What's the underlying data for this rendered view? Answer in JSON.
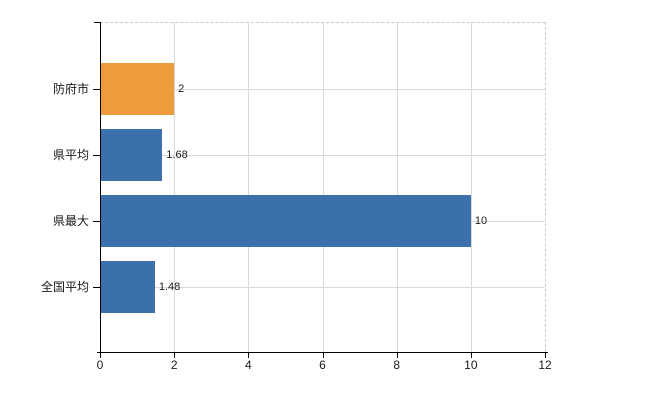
{
  "chart_data": {
    "type": "bar",
    "orientation": "horizontal",
    "title": "",
    "xlabel": "",
    "ylabel": "",
    "categories": [
      "防府市",
      "県平均",
      "県最大",
      "全国平均"
    ],
    "values": [
      2,
      1.68,
      10,
      1.48
    ],
    "value_labels": [
      "2",
      "1.68",
      "10",
      "1.48"
    ],
    "bar_colors": [
      "#ee9b3d",
      "#3c70ac",
      "#3c70ac",
      "#3c70ac"
    ],
    "xlim": [
      0,
      12
    ],
    "x_ticks": [
      0,
      2,
      4,
      6,
      8,
      10,
      12
    ],
    "x_tick_labels": [
      "0",
      "2",
      "4",
      "6",
      "8",
      "10",
      "12"
    ],
    "grid": "on",
    "legend": "none",
    "colors": {
      "accent_orange": "#ee9b3d",
      "accent_blue": "#3c70ac",
      "axis": "#000000",
      "gridline": "#d9d9d9",
      "dashed_border": "#c9c9c9",
      "text": "#1a1a1a",
      "background": "#ffffff"
    }
  }
}
